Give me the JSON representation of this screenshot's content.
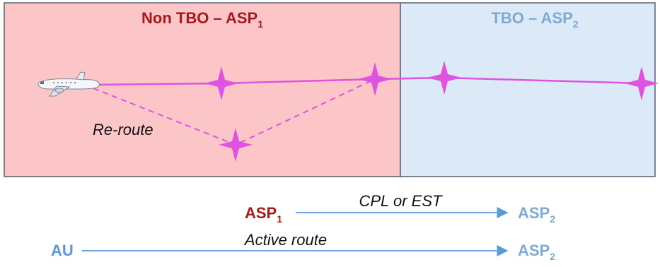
{
  "colors": {
    "non_tbo_fill": "#fcc6c8",
    "tbo_fill": "#dce9f6",
    "border": "#56606e",
    "route": "#e052e0",
    "asp1": "#a51b1b",
    "asp2": "#7eaad4",
    "au": "#5b9ad6",
    "arrow": "#5b9ad6"
  },
  "zones": {
    "non_tbo": {
      "title": "Non TBO – ASP",
      "title_sub": "1"
    },
    "tbo": {
      "title": "TBO – ASP",
      "title_sub": "2"
    }
  },
  "map": {
    "aircraft_icon": "airplane-icon",
    "waypoint_icon": "four-point-star-icon",
    "reroute_label": "Re-route"
  },
  "flows": [
    {
      "from": "ASP",
      "from_sub": "1",
      "label": "CPL or EST",
      "to": "ASP",
      "to_sub": "2"
    },
    {
      "from": "AU",
      "from_sub": "",
      "label": "Active route",
      "to": "ASP",
      "to_sub": "2"
    }
  ]
}
